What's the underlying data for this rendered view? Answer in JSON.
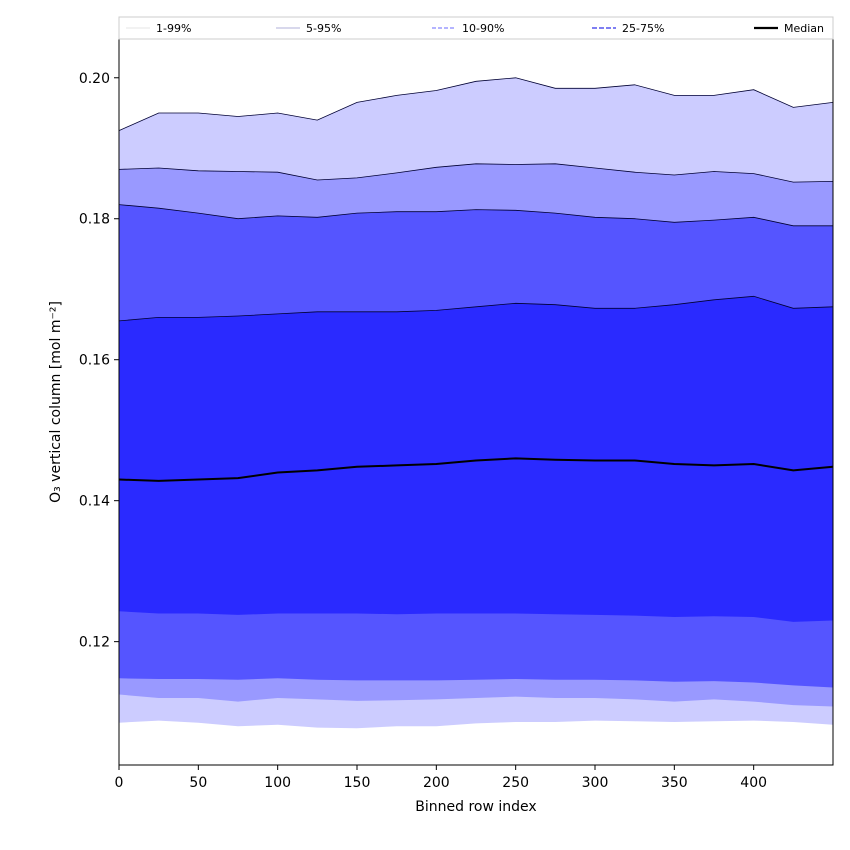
{
  "chart_data": {
    "type": "area",
    "xlabel": "Binned row index",
    "ylabel": "O₃ vertical column [mol m⁻²]",
    "xlim": [
      0,
      450
    ],
    "ylim": [
      0.1025,
      0.2055
    ],
    "x_ticks": [
      0,
      50,
      100,
      150,
      200,
      250,
      300,
      350,
      400
    ],
    "y_ticks": [
      0.12,
      0.14,
      0.16,
      0.18,
      0.2
    ],
    "y_tick_labels": [
      "0.12",
      "0.14",
      "0.16",
      "0.18",
      "0.20"
    ],
    "legend": {
      "placement": "top, above plot",
      "entries": [
        "1-99%",
        "5-95%",
        "10-90%",
        "25-75%",
        "Median"
      ]
    },
    "x": [
      0,
      25,
      50,
      75,
      100,
      125,
      150,
      175,
      200,
      225,
      250,
      275,
      300,
      325,
      350,
      375,
      400,
      425,
      450
    ],
    "bands": [
      {
        "name": "1-99%",
        "color": "#ccccff",
        "lower": [
          0.1085,
          0.1088,
          0.1085,
          0.108,
          0.1082,
          0.1078,
          0.1077,
          0.108,
          0.108,
          0.1084,
          0.1086,
          0.1086,
          0.1088,
          0.1087,
          0.1086,
          0.1087,
          0.1088,
          0.1086,
          0.1082
        ],
        "upper": [
          0.1925,
          0.195,
          0.195,
          0.1945,
          0.195,
          0.194,
          0.1965,
          0.1975,
          0.1982,
          0.1995,
          0.2,
          0.1985,
          0.1985,
          0.199,
          0.1975,
          0.1975,
          0.1983,
          0.1958,
          0.1965
        ]
      },
      {
        "name": "5-95%",
        "color": "#9999ff",
        "lower": [
          0.1125,
          0.112,
          0.112,
          0.1115,
          0.112,
          0.1118,
          0.1116,
          0.1117,
          0.1118,
          0.112,
          0.1122,
          0.112,
          0.112,
          0.1118,
          0.1115,
          0.1118,
          0.1115,
          0.111,
          0.1108
        ],
        "upper": [
          0.187,
          0.1872,
          0.1868,
          0.1867,
          0.1866,
          0.1855,
          0.1858,
          0.1865,
          0.1873,
          0.1878,
          0.1877,
          0.1878,
          0.1872,
          0.1866,
          0.1862,
          0.1867,
          0.1864,
          0.1852,
          0.1853
        ]
      },
      {
        "name": "10-90%",
        "color": "#5555ff",
        "lower": [
          0.1148,
          0.1147,
          0.1147,
          0.1146,
          0.1148,
          0.1146,
          0.1145,
          0.1145,
          0.1145,
          0.1146,
          0.1147,
          0.1146,
          0.1146,
          0.1145,
          0.1143,
          0.1144,
          0.1142,
          0.1138,
          0.1135
        ],
        "upper": [
          0.182,
          0.1815,
          0.1808,
          0.18,
          0.1804,
          0.1802,
          0.1808,
          0.181,
          0.181,
          0.1813,
          0.1812,
          0.1808,
          0.1802,
          0.18,
          0.1795,
          0.1798,
          0.1802,
          0.179,
          0.179
        ]
      },
      {
        "name": "25-75%",
        "color": "#2a2aff",
        "lower": [
          0.1243,
          0.124,
          0.124,
          0.1238,
          0.124,
          0.124,
          0.124,
          0.1239,
          0.124,
          0.124,
          0.124,
          0.1239,
          0.1238,
          0.1237,
          0.1235,
          0.1236,
          0.1235,
          0.1228,
          0.123
        ],
        "upper": [
          0.1655,
          0.166,
          0.166,
          0.1662,
          0.1665,
          0.1668,
          0.1668,
          0.1668,
          0.167,
          0.1675,
          0.168,
          0.1678,
          0.1673,
          0.1673,
          0.1678,
          0.1685,
          0.169,
          0.1673,
          0.1675
        ]
      }
    ],
    "series": [
      {
        "name": "Median",
        "color": "#000000",
        "values": [
          0.143,
          0.1428,
          0.143,
          0.1432,
          0.144,
          0.1443,
          0.1448,
          0.145,
          0.1452,
          0.1457,
          0.146,
          0.1458,
          0.1457,
          0.1457,
          0.1452,
          0.145,
          0.1452,
          0.1443,
          0.1448
        ]
      }
    ],
    "grid": false
  }
}
